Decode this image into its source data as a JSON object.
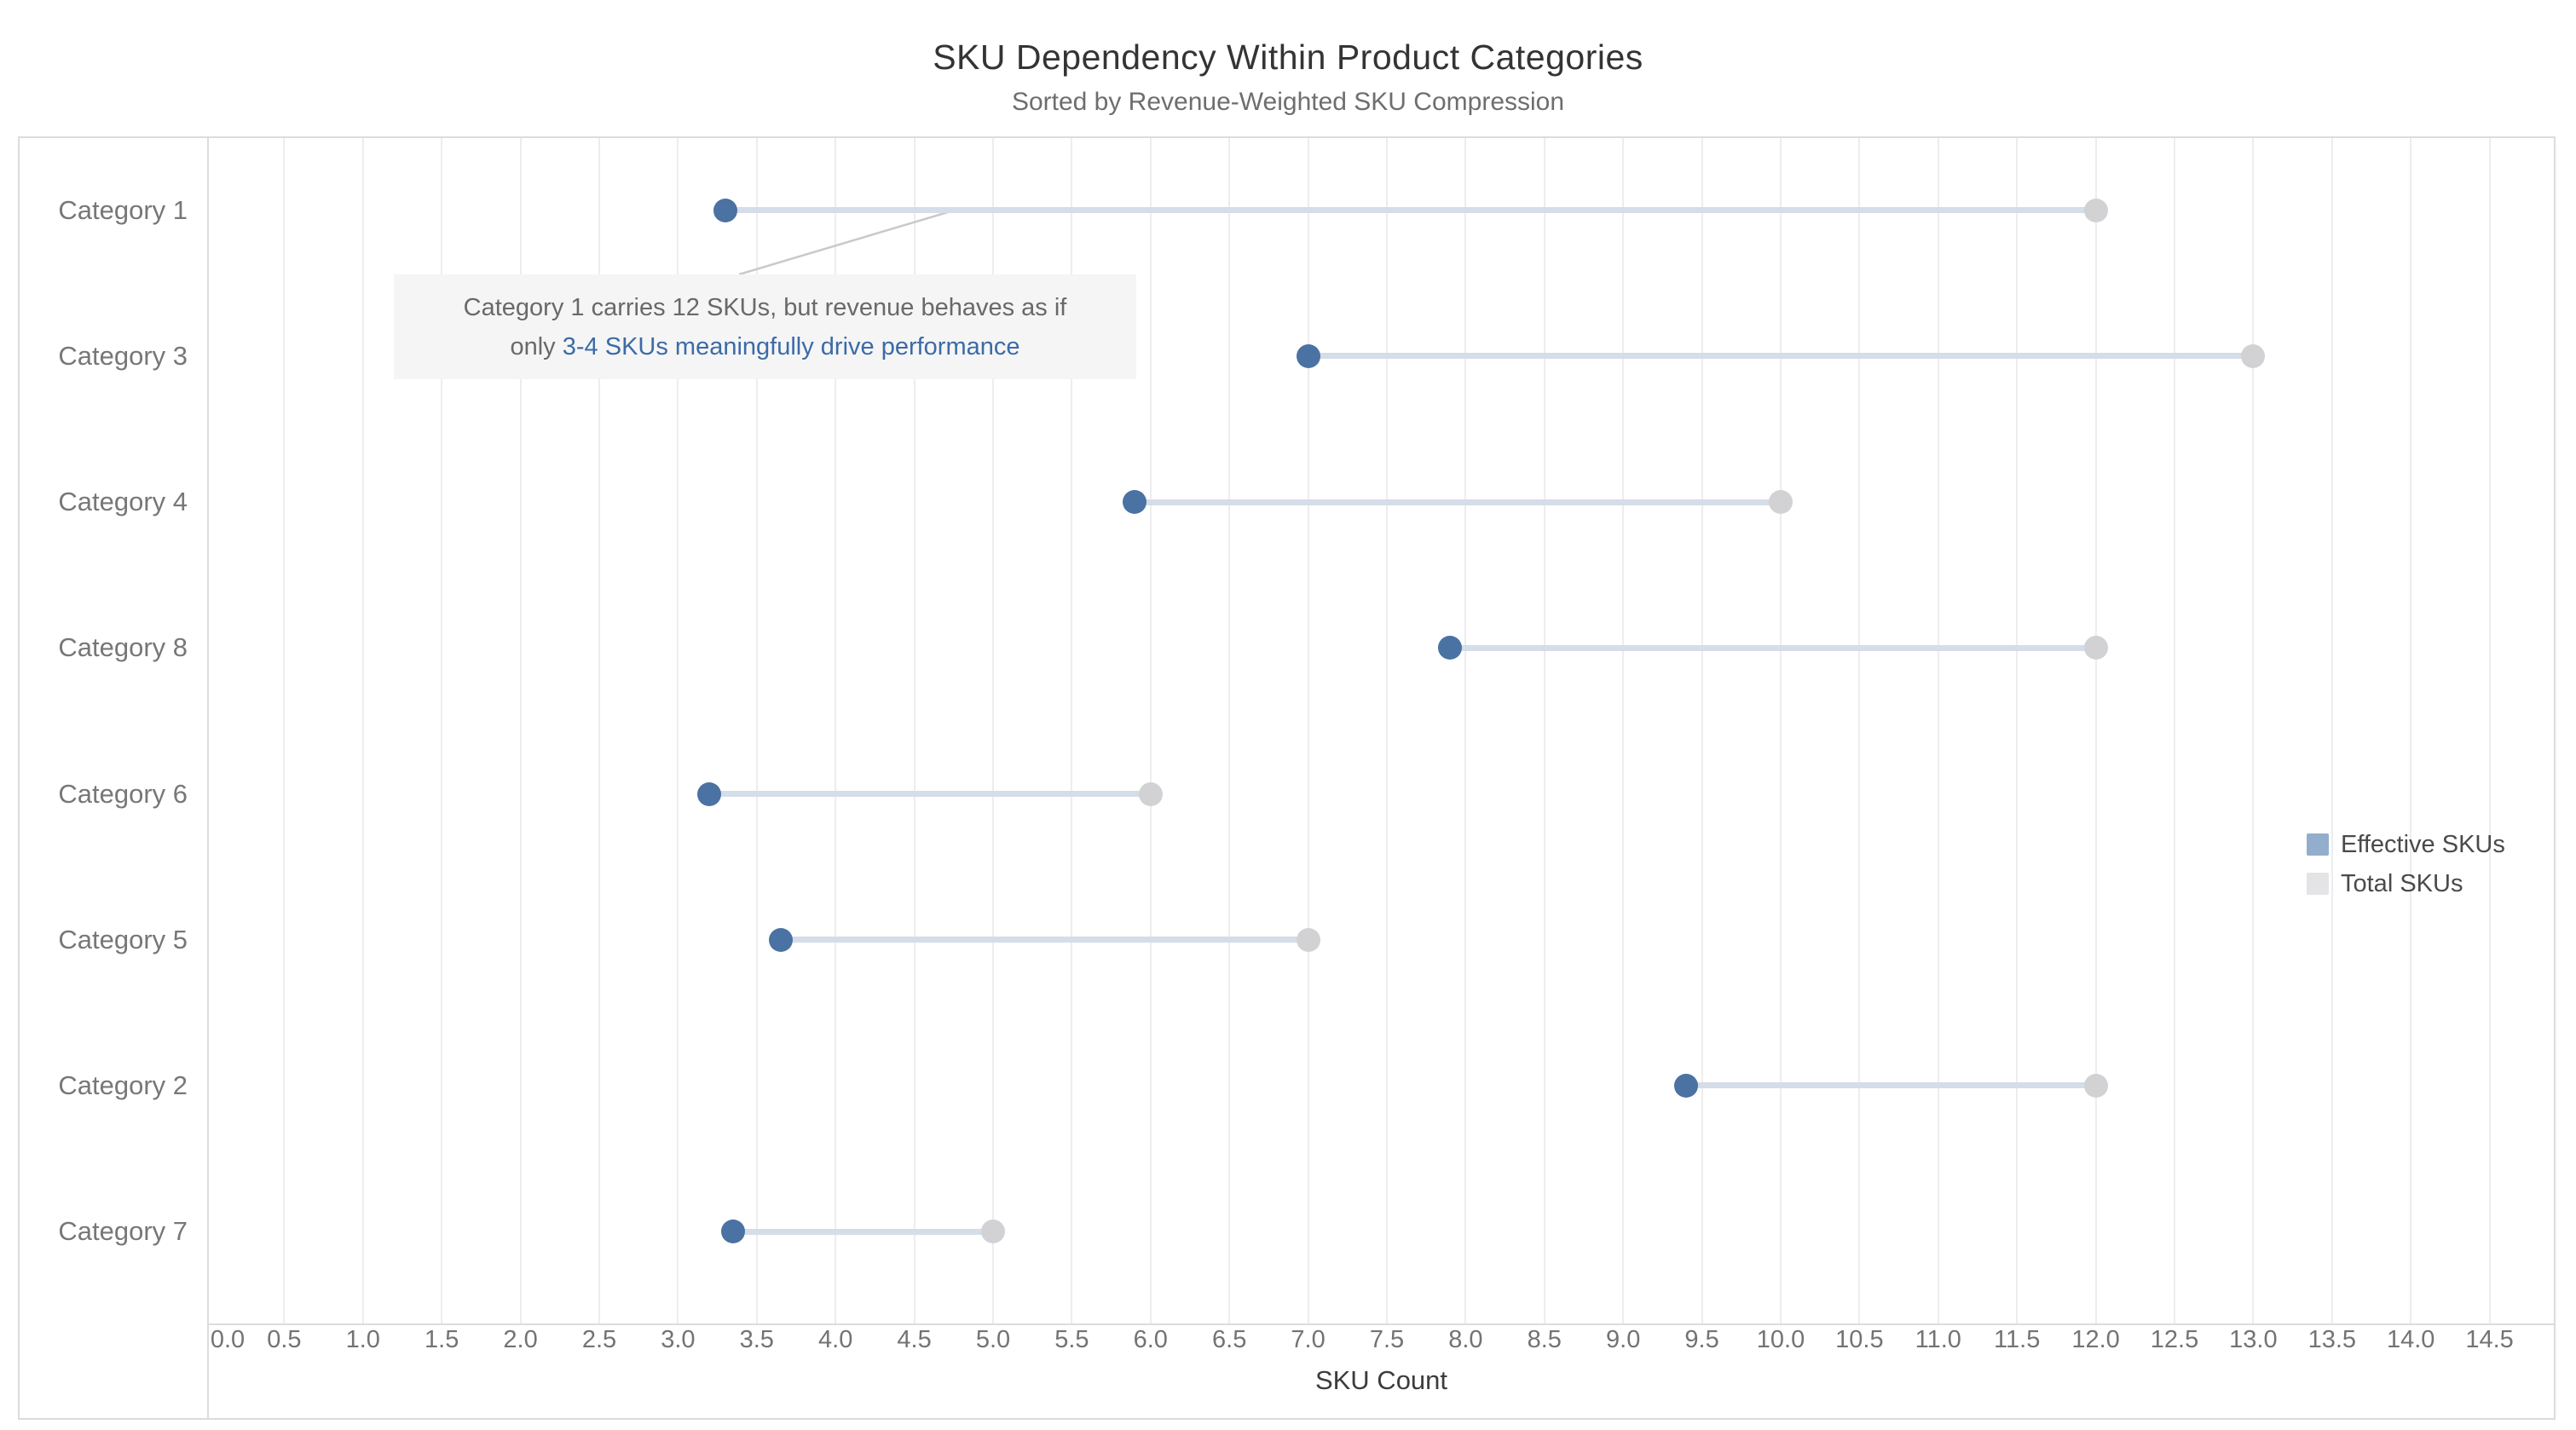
{
  "title": "SKU Dependency Within Product Categories",
  "subtitle": "Sorted by Revenue-Weighted SKU Compression",
  "chart_data": {
    "type": "scatter",
    "variant": "dumbbell",
    "categories": [
      "Category 1",
      "Category 3",
      "Category 4",
      "Category 8",
      "Category 6",
      "Category 5",
      "Category 2",
      "Category 7"
    ],
    "series": [
      {
        "name": "Effective SKUs",
        "values": [
          3.3,
          7.0,
          5.9,
          7.9,
          3.2,
          3.65,
          9.4,
          3.35
        ],
        "dot_color": "#4a72a2"
      },
      {
        "name": "Total SKUs",
        "values": [
          12.0,
          13.0,
          10.0,
          12.0,
          6.0,
          7.0,
          12.0,
          5.0
        ],
        "dot_color": "#d2d2d4"
      }
    ],
    "connector_color": "#d4dde8",
    "xlabel": "SKU Count",
    "xlim": [
      0,
      14.9
    ],
    "xticks": [
      0.0,
      0.5,
      1.0,
      1.5,
      2.0,
      2.5,
      3.0,
      3.5,
      4.0,
      4.5,
      5.0,
      5.5,
      6.0,
      6.5,
      7.0,
      7.5,
      8.0,
      8.5,
      9.0,
      9.5,
      10.0,
      10.5,
      11.0,
      11.5,
      12.0,
      12.5,
      13.0,
      13.5,
      14.0,
      14.5
    ],
    "grid": "vertical-only",
    "legend_position": "right"
  },
  "annotation": {
    "line1": "Category 1 carries 12 SKUs, but revenue behaves as if",
    "line2_prefix": "only ",
    "line2_highlight": "3-4 SKUs meaningfully drive performance"
  },
  "legend": {
    "items": [
      {
        "label": "Effective SKUs",
        "color": "#93aecd"
      },
      {
        "label": "Total SKUs",
        "color": "#e4e4e6"
      }
    ]
  }
}
